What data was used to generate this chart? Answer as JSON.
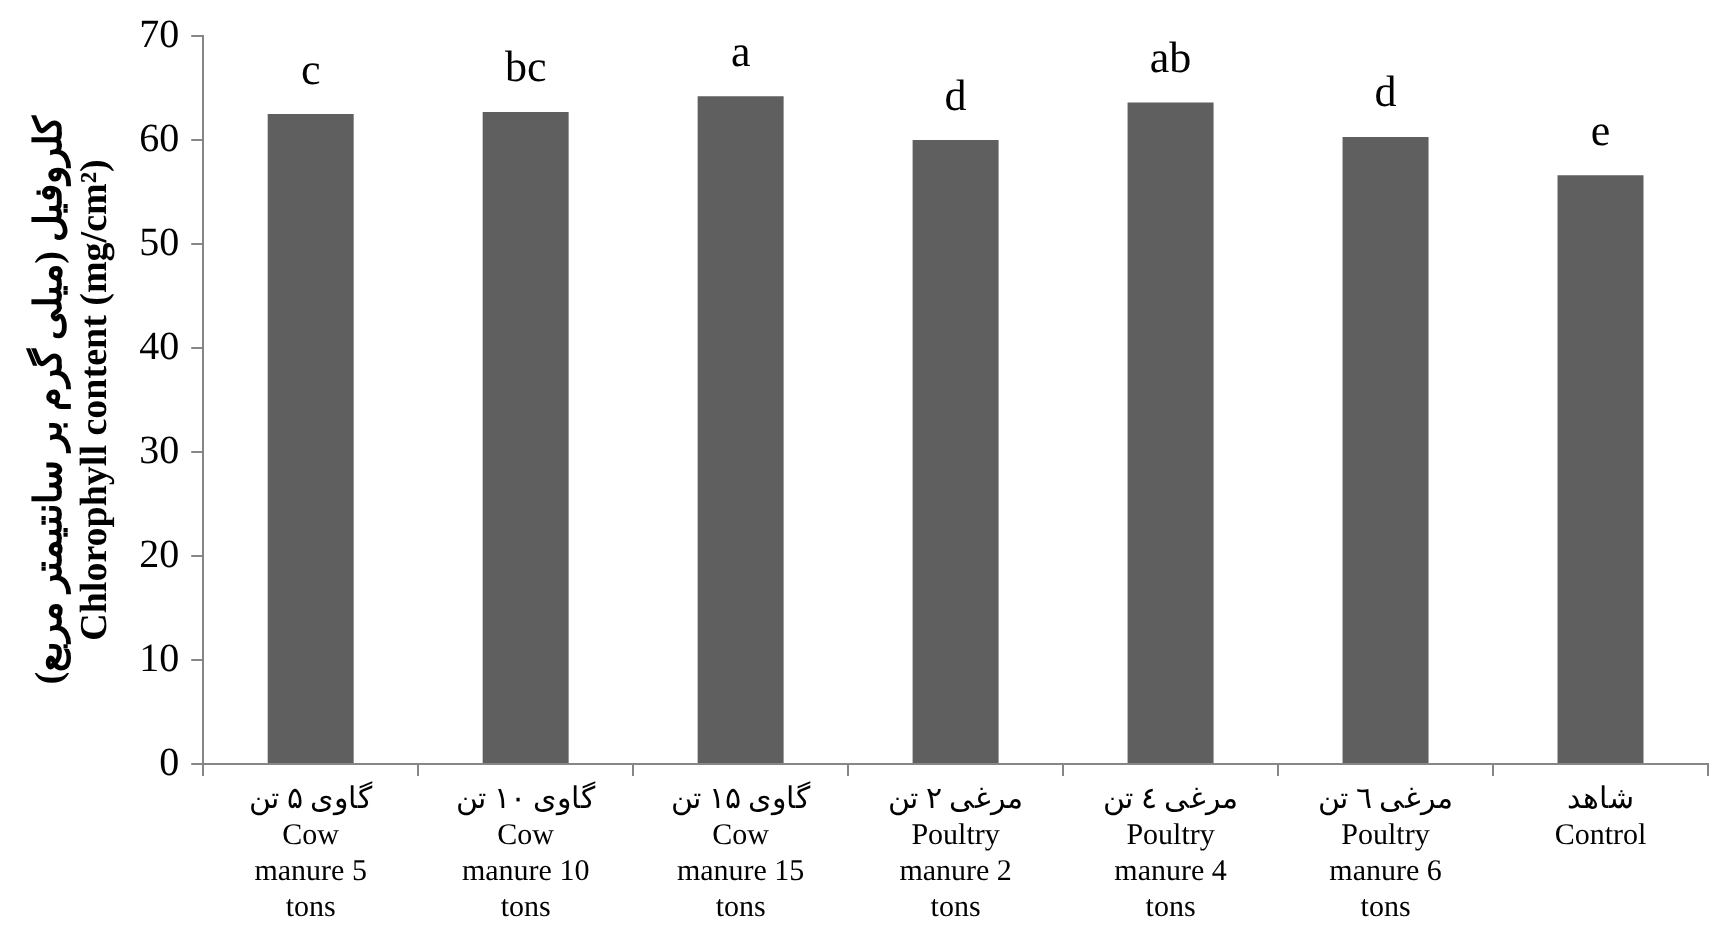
{
  "chart_data": {
    "type": "bar",
    "ylabel": "کلروفیل (میلی گرم بر سانتیمتر مربع)\nChlorophyll content (mg/cm²)",
    "categories": [
      "گاوی ۵ تن\nCow\nmanure 5\ntons",
      "گاوی ۱۰ تن\nCow\nmanure 10\ntons",
      "گاوی ۱۵ تن\nCow\nmanure 15\ntons",
      "مرغی ۲ تن\nPoultry\nmanure 2\ntons",
      "مرغی ٤ تن\nPoultry\nmanure 4\ntons",
      "مرغی ٦ تن\nPoultry\nmanure 6\ntons",
      "شاهد\nControl"
    ],
    "values": [
      62.5,
      62.7,
      64.2,
      60.0,
      63.6,
      60.3,
      56.6
    ],
    "color": "#5f5f5f",
    "ylim": [
      0,
      70
    ],
    "yticks": [
      0,
      10,
      20,
      30,
      40,
      50,
      60,
      70
    ],
    "grid": false,
    "annotations": [
      {
        "text": "c",
        "x": "گاوی ۵ تن\nCow\nmanure 5\ntons",
        "y": 62.5
      },
      {
        "text": "bc",
        "x": "گاوی ۱۰ تن\nCow\nmanure 10\ntons",
        "y": 62.7
      },
      {
        "text": "a",
        "x": "گاوی ۱۵ تن\nCow\nmanure 15\ntons",
        "y": 64.2
      },
      {
        "text": "d",
        "x": "مرغی ۲ تن\nPoultry\nmanure 2\ntons",
        "y": 60.0
      },
      {
        "text": "ab",
        "x": "مرغی ٤ تن\nPoultry\nmanure 4\ntons",
        "y": 63.6
      },
      {
        "text": "d",
        "x": "مرغی ٦ تن\nPoultry\nmanure 6\ntons",
        "y": 60.3
      },
      {
        "text": "e",
        "x": "شاهد\nControl",
        "y": 56.6
      }
    ]
  }
}
